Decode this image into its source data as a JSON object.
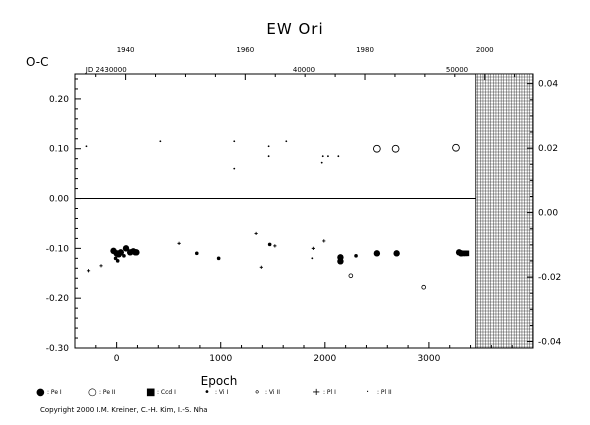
{
  "chart_data": {
    "type": "scatter",
    "title": "EW Ori",
    "xlabel": "Epoch",
    "ylabel": "O-C",
    "x_range": [
      -400,
      4000
    ],
    "y_left_range": [
      -0.3,
      0.25
    ],
    "y_right_range": [
      -0.042,
      0.043
    ],
    "top_axis_year_labels": [
      "1940",
      "1960",
      "1980",
      "2000"
    ],
    "top_axis_year_values": [
      1940,
      1960,
      1980,
      2000
    ],
    "jd_labels": [
      "JD 2430000",
      "40000",
      "50000"
    ],
    "jd_label_epochs": [
      -100,
      1800,
      3270
    ],
    "x_ticks": [
      0,
      1000,
      2000,
      3000
    ],
    "x_tick_labels": [
      "0",
      "1000",
      "2000",
      "3000"
    ],
    "y_left_ticks": [
      -0.3,
      -0.2,
      -0.1,
      0.0,
      0.1,
      0.2
    ],
    "y_left_tick_labels": [
      "-0.30",
      "-0.20",
      "-0.10",
      "0.00",
      "0.10",
      "0.20"
    ],
    "y_right_ticks": [
      -0.04,
      -0.02,
      0.0,
      0.02,
      0.04
    ],
    "y_right_tick_labels": [
      "-0.04",
      "-0.02",
      "0.00",
      "0.02",
      "0.04"
    ],
    "zero_line": true,
    "hatched_region_epoch": [
      3450,
      4000
    ],
    "series": [
      {
        "name": "Pe I",
        "marker": "filled-circle",
        "points": [
          [
            -30,
            -0.105
          ],
          [
            0,
            -0.11
          ],
          [
            20,
            -0.112
          ],
          [
            40,
            -0.108
          ],
          [
            90,
            -0.1
          ],
          [
            130,
            -0.108
          ],
          [
            160,
            -0.106
          ],
          [
            180,
            -0.108
          ],
          [
            190,
            -0.108
          ],
          [
            2150,
            -0.118
          ],
          [
            2150,
            -0.126
          ],
          [
            2500,
            -0.11
          ],
          [
            2690,
            -0.11
          ],
          [
            3290,
            -0.108
          ],
          [
            3310,
            -0.11
          ]
        ]
      },
      {
        "name": "Pe II",
        "marker": "open-circle",
        "points": [
          [
            2500,
            0.1
          ],
          [
            2680,
            0.1
          ],
          [
            3260,
            0.102
          ]
        ]
      },
      {
        "name": "Ccd I",
        "marker": "filled-square",
        "points": [
          [
            3320,
            -0.11
          ],
          [
            3345,
            -0.11
          ],
          [
            3360,
            -0.11
          ]
        ]
      },
      {
        "name": "Vi I",
        "marker": "dot",
        "points": [
          [
            -10,
            -0.12
          ],
          [
            10,
            -0.125
          ],
          [
            70,
            -0.115
          ],
          [
            770,
            -0.11
          ],
          [
            980,
            -0.12
          ],
          [
            1470,
            -0.092
          ],
          [
            2300,
            -0.115
          ]
        ]
      },
      {
        "name": "Vi II",
        "marker": "small-open-circle",
        "points": [
          [
            2250,
            -0.155
          ],
          [
            2950,
            -0.178
          ]
        ]
      },
      {
        "name": "Pl I",
        "marker": "plus",
        "points": [
          [
            -270,
            -0.145
          ],
          [
            -150,
            -0.135
          ],
          [
            600,
            -0.09
          ],
          [
            1340,
            -0.07
          ],
          [
            1390,
            -0.138
          ],
          [
            1520,
            -0.095
          ],
          [
            1890,
            -0.1
          ],
          [
            1990,
            -0.085
          ]
        ]
      },
      {
        "name": "Pl II",
        "marker": "tiny-dot",
        "points": [
          [
            -290,
            0.105
          ],
          [
            420,
            0.115
          ],
          [
            1130,
            0.115
          ],
          [
            1460,
            0.105
          ],
          [
            1630,
            0.115
          ],
          [
            1130,
            0.06
          ],
          [
            1460,
            0.085
          ],
          [
            1980,
            0.085
          ],
          [
            2030,
            0.085
          ],
          [
            2130,
            0.085
          ],
          [
            1970,
            0.072
          ],
          [
            1880,
            -0.12
          ]
        ]
      }
    ]
  },
  "legend": [
    {
      "symbol": "●",
      "label": ": Pe I"
    },
    {
      "symbol": "○",
      "label": ": Pe II"
    },
    {
      "symbol": "■",
      "label": ": Ccd I"
    },
    {
      "symbol": "•",
      "label": ": Vi I"
    },
    {
      "symbol": "∘",
      "label": ": Vi II"
    },
    {
      "symbol": "+",
      "label": ": Pl I"
    },
    {
      "symbol": "·",
      "label": ": Pl II"
    }
  ],
  "copyright": "Copyright 2000 I.M. Kreiner, C.-H. Kim, I.-S. Nha"
}
